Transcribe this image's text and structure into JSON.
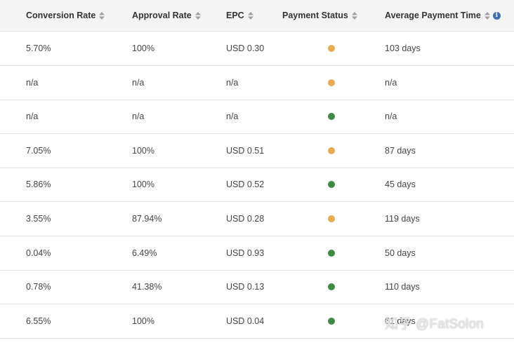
{
  "headers": {
    "conversion_rate": "Conversion Rate",
    "approval_rate": "Approval Rate",
    "epc": "EPC",
    "payment_status": "Payment Status",
    "average_payment_time": "Average Payment Time"
  },
  "icons": {
    "sort": "sort-icon",
    "info": "info-icon"
  },
  "colors": {
    "header_bg": "#f4f4f4",
    "status_orange": "#e8aa4e",
    "status_green": "#3b8a3e",
    "info_blue": "#3d6fb0"
  },
  "rows": [
    {
      "conversion_rate": "5.70%",
      "approval_rate": "100%",
      "epc": "USD 0.30",
      "status": "orange",
      "payment_time": "103 days"
    },
    {
      "conversion_rate": "n/a",
      "approval_rate": "n/a",
      "epc": "n/a",
      "status": "orange",
      "payment_time": "n/a"
    },
    {
      "conversion_rate": "n/a",
      "approval_rate": "n/a",
      "epc": "n/a",
      "status": "green",
      "payment_time": "n/a"
    },
    {
      "conversion_rate": "7.05%",
      "approval_rate": "100%",
      "epc": "USD 0.51",
      "status": "orange",
      "payment_time": "87 days"
    },
    {
      "conversion_rate": "5.86%",
      "approval_rate": "100%",
      "epc": "USD 0.52",
      "status": "green",
      "payment_time": "45 days"
    },
    {
      "conversion_rate": "3.55%",
      "approval_rate": "87.94%",
      "epc": "USD 0.28",
      "status": "orange",
      "payment_time": "119 days"
    },
    {
      "conversion_rate": "0.04%",
      "approval_rate": "6.49%",
      "epc": "USD 0.93",
      "status": "green",
      "payment_time": "50 days"
    },
    {
      "conversion_rate": "0.78%",
      "approval_rate": "41.38%",
      "epc": "USD 0.13",
      "status": "green",
      "payment_time": "110 days"
    },
    {
      "conversion_rate": "6.55%",
      "approval_rate": "100%",
      "epc": "USD 0.04",
      "status": "green",
      "payment_time": "61 days"
    }
  ],
  "watermark": "知乎 @FatSolon"
}
